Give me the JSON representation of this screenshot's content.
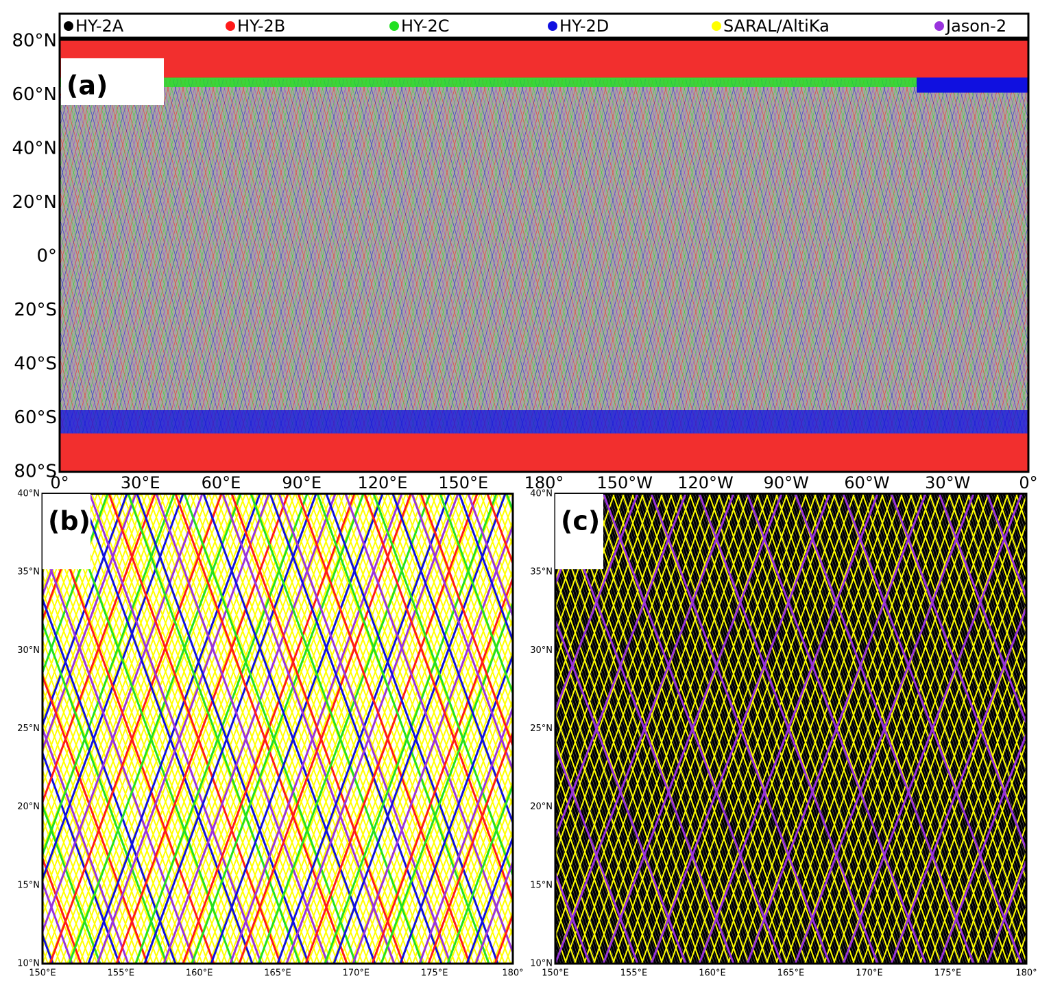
{
  "legend": [
    {
      "name": "HY-2A",
      "color": "#000000"
    },
    {
      "name": "HY-2B",
      "color": "#ff1a1a"
    },
    {
      "name": "HY-2C",
      "color": "#22e022"
    },
    {
      "name": "HY-2D",
      "color": "#1010e0"
    },
    {
      "name": "SARAL/AltiKa",
      "color": "#ffff00"
    },
    {
      "name": "Jason-2",
      "color": "#9933dd"
    }
  ],
  "panels": [
    {
      "label": "(a)",
      "y_labels": [
        "80°N",
        "60°N",
        "40°N",
        "20°N",
        "0°",
        "20°S",
        "40°S",
        "60°S",
        "80°S"
      ],
      "x_labels": [
        "0°",
        "30°E",
        "60°E",
        "90°E",
        "120°E",
        "150°E",
        "180°",
        "150°W",
        "120°W",
        "90°W",
        "60°W",
        "30°W",
        "0°"
      ]
    },
    {
      "label": "(b)",
      "y_labels": [
        "40°N",
        "35°N",
        "30°N",
        "25°N",
        "20°N",
        "15°N",
        "10°N"
      ],
      "x_labels": [
        "150°E",
        "155°E",
        "160°E",
        "165°E",
        "170°E",
        "175°E",
        "180°"
      ]
    },
    {
      "label": "(c)",
      "y_labels": [
        "40°N",
        "35°N",
        "30°N",
        "25°N",
        "20°N",
        "15°N",
        "10°N"
      ],
      "x_labels": [
        "150°E",
        "155°E",
        "160°E",
        "165°E",
        "170°E",
        "175°E",
        "180°"
      ]
    }
  ]
}
